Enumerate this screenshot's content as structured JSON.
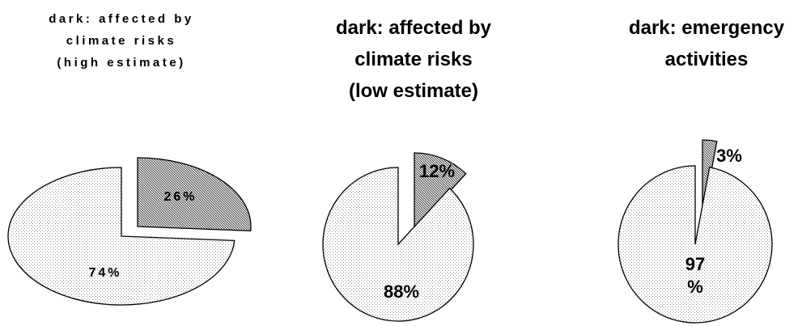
{
  "chart_data": [
    {
      "type": "pie",
      "title_lines": [
        "dark: affected by",
        "climate risks",
        "(high estimate)"
      ],
      "slices": [
        {
          "label": "26%",
          "value": 26,
          "highlight": true
        },
        {
          "label": "74%",
          "value": 74,
          "highlight": false
        }
      ]
    },
    {
      "type": "pie",
      "title_lines": [
        "dark: affected by",
        "climate risks",
        "(low estimate)"
      ],
      "slices": [
        {
          "label": "12%",
          "value": 12,
          "highlight": true
        },
        {
          "label": "88%",
          "value": 88,
          "highlight": false
        }
      ]
    },
    {
      "type": "pie",
      "title_lines": [
        "dark: emergency",
        "activities"
      ],
      "slices": [
        {
          "label": "3%",
          "value": 3,
          "highlight": true
        },
        {
          "label_lines": [
            "97",
            "%"
          ],
          "value": 97,
          "highlight": false
        }
      ]
    }
  ],
  "colors": {
    "light_fill": "#ffffff",
    "light_dot": "#9a9a9a",
    "dark_fill": "#d8d8d8",
    "dark_dot": "#444444",
    "stroke": "#000000"
  }
}
